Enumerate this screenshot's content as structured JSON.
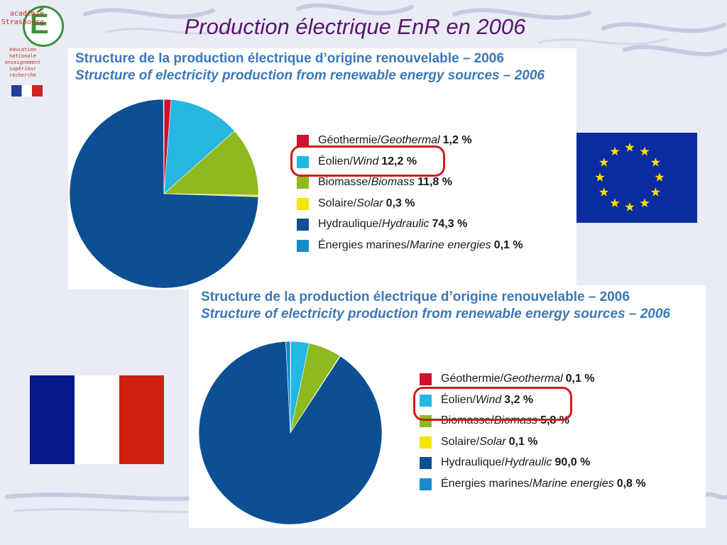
{
  "slide_title": "Production électrique EnR en 2006",
  "logo": {
    "letter": "É",
    "name_lines": [
      "académie",
      "Strasbourg"
    ],
    "ministry_lines": [
      "éducation",
      "nationale",
      "enseignement",
      "supérieur",
      "recherche"
    ]
  },
  "colors": {
    "title": "#5a1470",
    "chart_title": "#3b78b6",
    "highlight": "#d11a1a",
    "eu_blue": "#0b2c9e",
    "eu_star": "#ffdd00",
    "fr_blue": "#08178a",
    "fr_red": "#d0200f"
  },
  "flags": {
    "eu": "eu-flag",
    "fr": "france-flag"
  },
  "chart_data": [
    {
      "type": "pie",
      "title": "Structure de la production électrique d’origine renouvelable – 2006",
      "subtitle": "Structure of electricity production from renewable energy sources – 2006",
      "highlighted_index": 1,
      "series": [
        {
          "fr": "Géothermie/",
          "en": "Geothermal",
          "value": 1.2,
          "label": "1,2 %",
          "color": "#d0102e"
        },
        {
          "fr": "Éolien/",
          "en": "Wind",
          "value": 12.2,
          "label": "12,2 %",
          "color": "#26b6e2"
        },
        {
          "fr": "Biomasse/",
          "en": "Biomass",
          "value": 11.8,
          "label": "11,8 %",
          "color": "#8fba1f"
        },
        {
          "fr": "Solaire/",
          "en": "Solar",
          "value": 0.3,
          "label": "0,3 %",
          "color": "#f5e600"
        },
        {
          "fr": "Hydraulique/",
          "en": "Hydraulic",
          "value": 74.3,
          "label": "74,3 %",
          "color": "#0d4f93"
        },
        {
          "fr": "Énergies marines/",
          "en": "Marine energies",
          "value": 0.1,
          "label": "0,1 %",
          "color": "#158cc9"
        }
      ]
    },
    {
      "type": "pie",
      "title": "Structure de la production électrique d’origine renouvelable – 2006",
      "subtitle": "Structure of electricity production from renewable energy sources – 2006",
      "highlighted_index": 1,
      "series": [
        {
          "fr": "Géothermie/",
          "en": "Geothermal",
          "value": 0.1,
          "label": "0,1 %",
          "color": "#d0102e"
        },
        {
          "fr": "Éolien/",
          "en": "Wind",
          "value": 3.2,
          "label": "3,2 %",
          "color": "#26b6e2"
        },
        {
          "fr": "Biomasse/",
          "en": "Biomass",
          "value": 5.8,
          "label": "5,8 %",
          "color": "#8fba1f"
        },
        {
          "fr": "Solaire/",
          "en": "Solar",
          "value": 0.1,
          "label": "0,1 %",
          "color": "#f5e600"
        },
        {
          "fr": "Hydraulique/",
          "en": "Hydraulic",
          "value": 90.0,
          "label": "90,0 %",
          "color": "#0d4f93"
        },
        {
          "fr": "Énergies marines/",
          "en": "Marine energies",
          "value": 0.8,
          "label": "0,8 %",
          "color": "#158cc9"
        }
      ]
    }
  ]
}
